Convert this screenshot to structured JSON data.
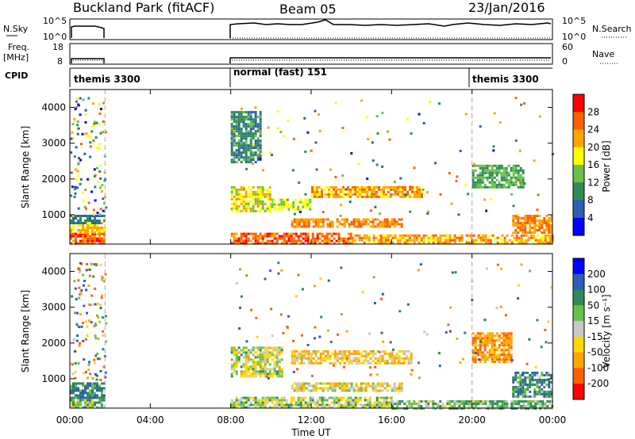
{
  "header": {
    "title": "Buckland Park (fitACF)",
    "beam": "Beam 05",
    "date": "23/Jan/2016"
  },
  "colors": {
    "power_scale": [
      "#0000ff",
      "#2f5fb4",
      "#2e8b57",
      "#6cc04a",
      "#ffff00",
      "#ffa500",
      "#ff6000",
      "#ff0000"
    ],
    "velocity_scale": [
      "#ff0000",
      "#ff6000",
      "#ffa500",
      "#ffd700",
      "#c8c8c8",
      "#6cc04a",
      "#2e8b57",
      "#2f5fb4",
      "#0000ff"
    ],
    "axis": "#000000",
    "dashed_line": "#aaaaaa"
  },
  "strip": {
    "nsky_label": "N.Sky",
    "nsky_ticks": [
      "10^5",
      "10^0"
    ],
    "nsearch_label": "N.Search",
    "nsearch_ticks": [
      "10^5",
      "10^0"
    ],
    "freq_label": "Freq.",
    "freq_unit": "[MHz]",
    "freq_ticks": [
      "18",
      "8"
    ],
    "nave_label": "Nave",
    "nave_ticks": [
      "60",
      "0"
    ],
    "cpid_label": "CPID"
  },
  "modes": [
    {
      "label": "themis 3300",
      "start_h": 0.0,
      "end_h": 1.75
    },
    {
      "label": "normal (fast) 151",
      "start_h": 8.0,
      "end_h": 20.0
    },
    {
      "label": "themis 3300",
      "start_h": 20.0,
      "end_h": 24.0
    }
  ],
  "chart_data": [
    {
      "type": "heatmap",
      "panel": "power",
      "xlabel": "",
      "ylabel": "Slant Range [km]",
      "xlim": [
        0,
        24
      ],
      "ylim": [
        180,
        4500
      ],
      "yticks": [
        1000,
        2000,
        3000,
        4000
      ],
      "colorbar": {
        "label": "Power [dB]",
        "ticks": [
          "4",
          "8",
          "12",
          "16",
          "20",
          "24",
          "28"
        ]
      },
      "data_gaps_h": [
        [
          1.75,
          8.0
        ]
      ],
      "bands": [
        {
          "t0": 0.0,
          "t1": 1.75,
          "r0": 200,
          "r1": 500,
          "level": 28
        },
        {
          "t0": 0.0,
          "t1": 1.75,
          "r0": 500,
          "r1": 800,
          "level": 22
        },
        {
          "t0": 0.0,
          "t1": 1.75,
          "r0": 800,
          "r1": 1000,
          "level": 10
        },
        {
          "t0": 8.0,
          "t1": 14.0,
          "r0": 200,
          "r1": 500,
          "level": 28
        },
        {
          "t0": 14.0,
          "t1": 24.0,
          "r0": 200,
          "r1": 450,
          "level": 24
        },
        {
          "t0": 11.0,
          "t1": 16.5,
          "r0": 650,
          "r1": 900,
          "level": 26
        },
        {
          "t0": 8.0,
          "t1": 10.0,
          "r0": 1100,
          "r1": 1800,
          "level": 20
        },
        {
          "t0": 10.0,
          "t1": 12.0,
          "r0": 1150,
          "r1": 1450,
          "level": 18
        },
        {
          "t0": 12.0,
          "t1": 17.5,
          "r0": 1500,
          "r1": 1800,
          "level": 24
        },
        {
          "t0": 8.0,
          "t1": 9.5,
          "r0": 2500,
          "r1": 3900,
          "level": 12
        },
        {
          "t0": 20.0,
          "t1": 22.5,
          "r0": 1800,
          "r1": 2400,
          "level": 14
        },
        {
          "t0": 22.0,
          "t1": 24.0,
          "r0": 500,
          "r1": 1000,
          "level": 26
        }
      ]
    },
    {
      "type": "heatmap",
      "panel": "velocity",
      "xlabel": "Time UT",
      "ylabel": "Slant Range [km]",
      "xlim": [
        0,
        24
      ],
      "ylim": [
        180,
        4500
      ],
      "xticks": [
        "00:00",
        "04:00",
        "08:00",
        "12:00",
        "16:00",
        "20:00",
        "00:00"
      ],
      "yticks": [
        1000,
        2000,
        3000,
        4000
      ],
      "colorbar": {
        "label": "Velocity [m s⁻¹]",
        "ticks": [
          "200",
          "100",
          "50",
          "15",
          "-15",
          "-50",
          "-100",
          "-200"
        ]
      },
      "data_gaps_h": [
        [
          1.75,
          8.0
        ]
      ],
      "bands": [
        {
          "t0": 0.0,
          "t1": 1.75,
          "r0": 200,
          "r1": 500,
          "level": 30
        },
        {
          "t0": 0.0,
          "t1": 1.75,
          "r0": 500,
          "r1": 900,
          "level": 90
        },
        {
          "t0": 8.0,
          "t1": 16.0,
          "r0": 200,
          "r1": 500,
          "level": 10
        },
        {
          "t0": 16.0,
          "t1": 24.0,
          "r0": 200,
          "r1": 400,
          "level": 40
        },
        {
          "t0": 8.0,
          "t1": 10.5,
          "r0": 1100,
          "r1": 1900,
          "level": 0
        },
        {
          "t0": 11.0,
          "t1": 17.0,
          "r0": 1450,
          "r1": 1800,
          "level": -40
        },
        {
          "t0": 11.0,
          "t1": 16.5,
          "r0": 650,
          "r1": 900,
          "level": -20
        },
        {
          "t0": 20.0,
          "t1": 22.0,
          "r0": 1500,
          "r1": 2300,
          "level": -90
        },
        {
          "t0": 22.0,
          "t1": 24.0,
          "r0": 500,
          "r1": 1200,
          "level": 70
        }
      ]
    }
  ]
}
